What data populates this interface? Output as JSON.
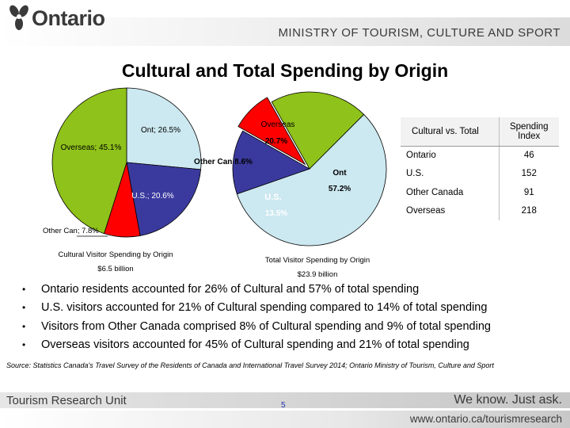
{
  "header": {
    "logo_text": "Ontario",
    "ministry": "MINISTRY OF TOURISM, CULTURE AND SPORT"
  },
  "slide_title": "Cultural and Total Spending by Origin",
  "chart_data": [
    {
      "type": "pie",
      "title": "Cultural Visitor Spending by Origin",
      "subtitle": "$6.5 billion",
      "categories": [
        "Ont",
        "U.S.",
        "Other Can",
        "Overseas"
      ],
      "values": [
        26.5,
        20.6,
        7.8,
        45.1
      ],
      "labels": [
        "Ont; 26.5%",
        "U.S.; 20.6%",
        "Other Can; 7.8%",
        "Overseas; 45.1%"
      ],
      "colors": [
        "#cce8f0",
        "#3a3a9e",
        "#ff0000",
        "#8fc21a"
      ]
    },
    {
      "type": "pie",
      "title": "Total Visitor Spending by Origin",
      "subtitle": "$23.9 billion",
      "categories": [
        "Ont",
        "U.S.",
        "Other Can",
        "Overseas"
      ],
      "values": [
        57.2,
        13.5,
        8.6,
        20.7
      ],
      "slice_labels": {
        "ont_name": "Ont",
        "ont_value": "57.2%",
        "us_name": "U.S.",
        "us_value": "13.5%",
        "other_name": "Other Can 8.6%",
        "overseas_name": "Overseas",
        "overseas_value": "20.7%"
      },
      "colors": [
        "#cce8f0",
        "#3a3a9e",
        "#ff0000",
        "#8fc21a"
      ]
    }
  ],
  "table": {
    "col1_header": "Cultural vs. Total",
    "col2_header": "Spending Index",
    "rows": [
      {
        "origin": "Ontario",
        "index": "46"
      },
      {
        "origin": "U.S.",
        "index": "152"
      },
      {
        "origin": "Other Canada",
        "index": "91"
      },
      {
        "origin": "Overseas",
        "index": "218"
      }
    ]
  },
  "bullets": [
    "Ontario residents accounted for 26% of Cultural and 57% of total spending",
    "U.S. visitors accounted for 21% of Cultural spending compared to 14% of total spending",
    "Visitors from Other Canada comprised 8% of Cultural spending and 9% of total spending",
    "Overseas visitors accounted for 45% of Cultural spending and 21% of total spending"
  ],
  "source": "Source: Statistics Canada's Travel Survey of the Residents of Canada and International Travel Survey 2014; Ontario Ministry of Tourism, Culture and Sport",
  "footer": {
    "left": "Tourism Research Unit",
    "right": "We know. Just ask.",
    "page": "5",
    "url": "www.ontario.ca/tourismresearch"
  }
}
